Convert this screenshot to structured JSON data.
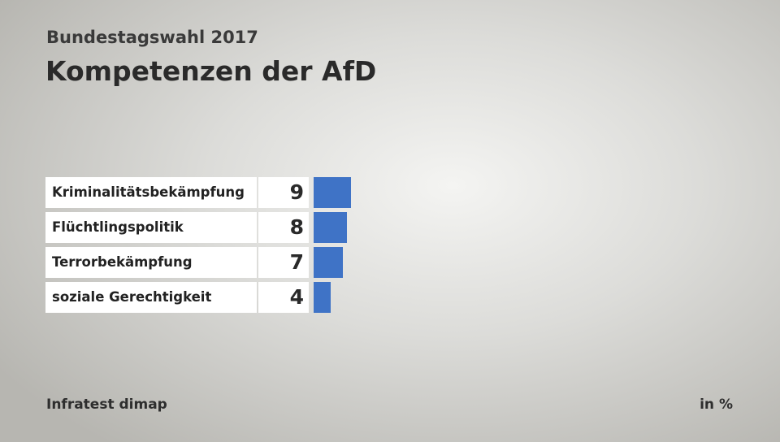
{
  "header": {
    "subtitle": "Bundestagswahl 2017",
    "title": "Kompetenzen der AfD"
  },
  "footer": {
    "source": "Infratest dimap",
    "unit": "in %"
  },
  "colors": {
    "bar": "#3f73c6"
  },
  "chart_data": {
    "type": "bar",
    "orientation": "horizontal",
    "title": "Kompetenzen der AfD",
    "subtitle": "Bundestagswahl 2017",
    "categories": [
      "Kriminalitätsbekämpfung",
      "Flüchtlingspolitik",
      "Terrorbekämpfung",
      "soziale Gerechtigkeit"
    ],
    "values": [
      9,
      8,
      7,
      4
    ],
    "unit": "in %",
    "grid": false,
    "legend": "none"
  }
}
